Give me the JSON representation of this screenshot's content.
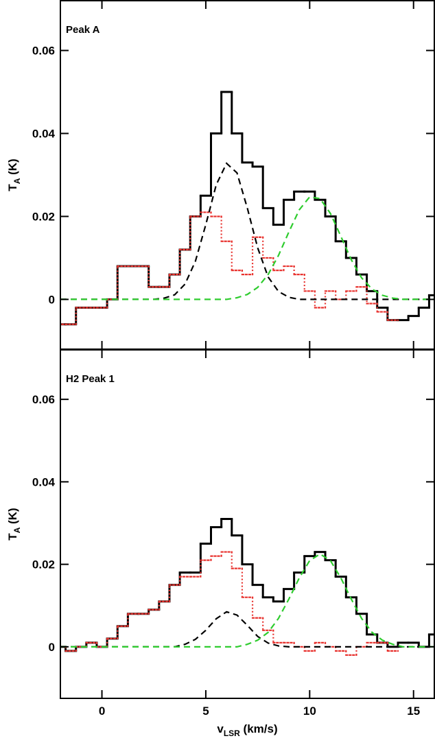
{
  "chart_data": [
    {
      "type": "line",
      "title": "Peak A",
      "ylabel": [
        "T",
        "A",
        " (K)"
      ],
      "xlim": [
        -2,
        16
      ],
      "ylim": [
        -0.012,
        0.072
      ],
      "xticks": [
        0,
        5,
        10,
        15
      ],
      "yticks": [
        0,
        0.02,
        0.04,
        0.06
      ],
      "x": [
        -2,
        -1.5,
        -1,
        -0.5,
        0,
        0.5,
        1,
        1.5,
        2,
        2.5,
        3,
        3.5,
        4,
        4.5,
        5,
        5.5,
        6,
        6.5,
        7,
        7.5,
        8,
        8.5,
        9,
        9.5,
        10,
        10.5,
        11,
        11.5,
        12,
        12.5,
        13,
        13.5,
        14,
        14.5,
        15,
        15.5,
        16
      ],
      "series": [
        {
          "color": "#000000",
          "drawstyle": "steps",
          "linestyle": "solid",
          "values": [
            -0.006,
            -0.006,
            -0.002,
            -0.002,
            -0.002,
            0,
            0.008,
            0.008,
            0.008,
            0.003,
            0.003,
            0.006,
            0.012,
            0.02,
            0.025,
            0.04,
            0.05,
            0.04,
            0.033,
            0.032,
            0.022,
            0.018,
            0.024,
            0.026,
            0.026,
            0.024,
            0.02,
            0.014,
            0.01,
            0.006,
            0.002,
            -0.002,
            -0.005,
            -0.005,
            -0.004,
            -0.002,
            0.001
          ]
        },
        {
          "color": "#e8322e",
          "drawstyle": "steps",
          "linestyle": "dotted",
          "values": [
            -0.006,
            -0.006,
            -0.002,
            -0.002,
            -0.002,
            0,
            0.008,
            0.008,
            0.008,
            0.003,
            0.003,
            0.006,
            0.012,
            0.02,
            0.021,
            0.02,
            0.014,
            0.007,
            0.006,
            0.015,
            0.01,
            0.007,
            0.008,
            0.006,
            0.002,
            -0.002,
            0.002,
            0,
            0.002,
            0.003,
            -0.001,
            -0.003,
            -0.005,
            null,
            null,
            null,
            null
          ]
        },
        {
          "color": "#000000",
          "drawstyle": "smooth",
          "linestyle": "dashed",
          "values": [
            0,
            0,
            0,
            0,
            0,
            0,
            0,
            0,
            0,
            0,
            0.0003,
            0.0011,
            0.0037,
            0.0092,
            0.018,
            0.0276,
            0.0328,
            0.0305,
            0.022,
            0.0124,
            0.0054,
            0.0019,
            0.0005,
            0,
            0,
            0,
            0,
            0,
            0,
            0,
            0,
            0,
            0,
            0,
            0,
            0,
            0
          ]
        },
        {
          "color": "#2ecc2e",
          "drawstyle": "smooth",
          "linestyle": "dashed",
          "values": [
            0,
            0,
            0,
            0,
            0,
            0,
            0,
            0,
            0,
            0,
            0,
            0,
            0,
            0,
            0,
            0,
            0,
            0.0004,
            0.0012,
            0.0029,
            0.006,
            0.0106,
            0.0163,
            0.0216,
            0.0247,
            0.0243,
            0.0207,
            0.0152,
            0.0096,
            0.0052,
            0.0025,
            0.001,
            0.0003,
            0,
            0,
            0,
            0
          ]
        }
      ]
    },
    {
      "type": "line",
      "title": "H2 Peak 1",
      "ylabel": [
        "T",
        "A",
        " (K)"
      ],
      "xlabel": [
        "v",
        "LSR",
        " (km/s)"
      ],
      "xlim": [
        -2,
        16
      ],
      "ylim": [
        -0.0125,
        0.072
      ],
      "xticks": [
        0,
        5,
        10,
        15
      ],
      "yticks": [
        0,
        0.02,
        0.04,
        0.06
      ],
      "x": [
        -2,
        -1.5,
        -1,
        -0.5,
        0,
        0.5,
        1,
        1.5,
        2,
        2.5,
        3,
        3.5,
        4,
        4.5,
        5,
        5.5,
        6,
        6.5,
        7,
        7.5,
        8,
        8.5,
        9,
        9.5,
        10,
        10.5,
        11,
        11.5,
        12,
        12.5,
        13,
        13.5,
        14,
        14.5,
        15,
        15.5,
        16
      ],
      "series": [
        {
          "color": "#000000",
          "drawstyle": "steps",
          "linestyle": "solid",
          "values": [
            0,
            -0.001,
            0,
            0.001,
            0,
            0.002,
            0.005,
            0.008,
            0.008,
            0.009,
            0.011,
            0.015,
            0.018,
            0.018,
            0.025,
            0.029,
            0.031,
            0.027,
            0.02,
            0.015,
            0.012,
            0.011,
            0.014,
            0.018,
            0.022,
            0.023,
            0.021,
            0.017,
            0.012,
            0.008,
            0.003,
            0.001,
            0,
            0.001,
            0.001,
            0,
            0.003
          ]
        },
        {
          "color": "#e8322e",
          "drawstyle": "steps",
          "linestyle": "dotted",
          "values": [
            0,
            -0.001,
            0,
            0.001,
            0,
            0.002,
            0.005,
            0.008,
            0.008,
            0.009,
            0.011,
            0.015,
            0.017,
            0.017,
            0.021,
            0.022,
            0.023,
            0.019,
            0.012,
            0.007,
            0.004,
            0.001,
            0.001,
            0,
            -0.001,
            0.001,
            0,
            -0.001,
            -0.002,
            0,
            0.001,
            0.001,
            -0.001,
            null,
            null,
            null,
            null
          ]
        },
        {
          "color": "#000000",
          "drawstyle": "smooth",
          "linestyle": "dashed",
          "values": [
            0,
            0,
            0,
            0,
            0,
            0,
            0,
            0,
            0,
            0,
            0,
            0,
            0.0006,
            0.0018,
            0.004,
            0.0068,
            0.0085,
            0.0077,
            0.0052,
            0.0025,
            0.0009,
            0.0002,
            0,
            0,
            0,
            0,
            0,
            0,
            0,
            0,
            0,
            0,
            0,
            0,
            0,
            0,
            0
          ]
        },
        {
          "color": "#2ecc2e",
          "drawstyle": "smooth",
          "linestyle": "dashed",
          "values": [
            0,
            0,
            0,
            0,
            0,
            0,
            0,
            0,
            0,
            0,
            0,
            0,
            0,
            0,
            0,
            0,
            0,
            0,
            0.0006,
            0.0016,
            0.0035,
            0.0069,
            0.0116,
            0.0167,
            0.0209,
            0.0225,
            0.0209,
            0.0167,
            0.0116,
            0.0069,
            0.0035,
            0.0016,
            0.0006,
            0,
            0,
            0,
            0
          ]
        }
      ]
    }
  ]
}
